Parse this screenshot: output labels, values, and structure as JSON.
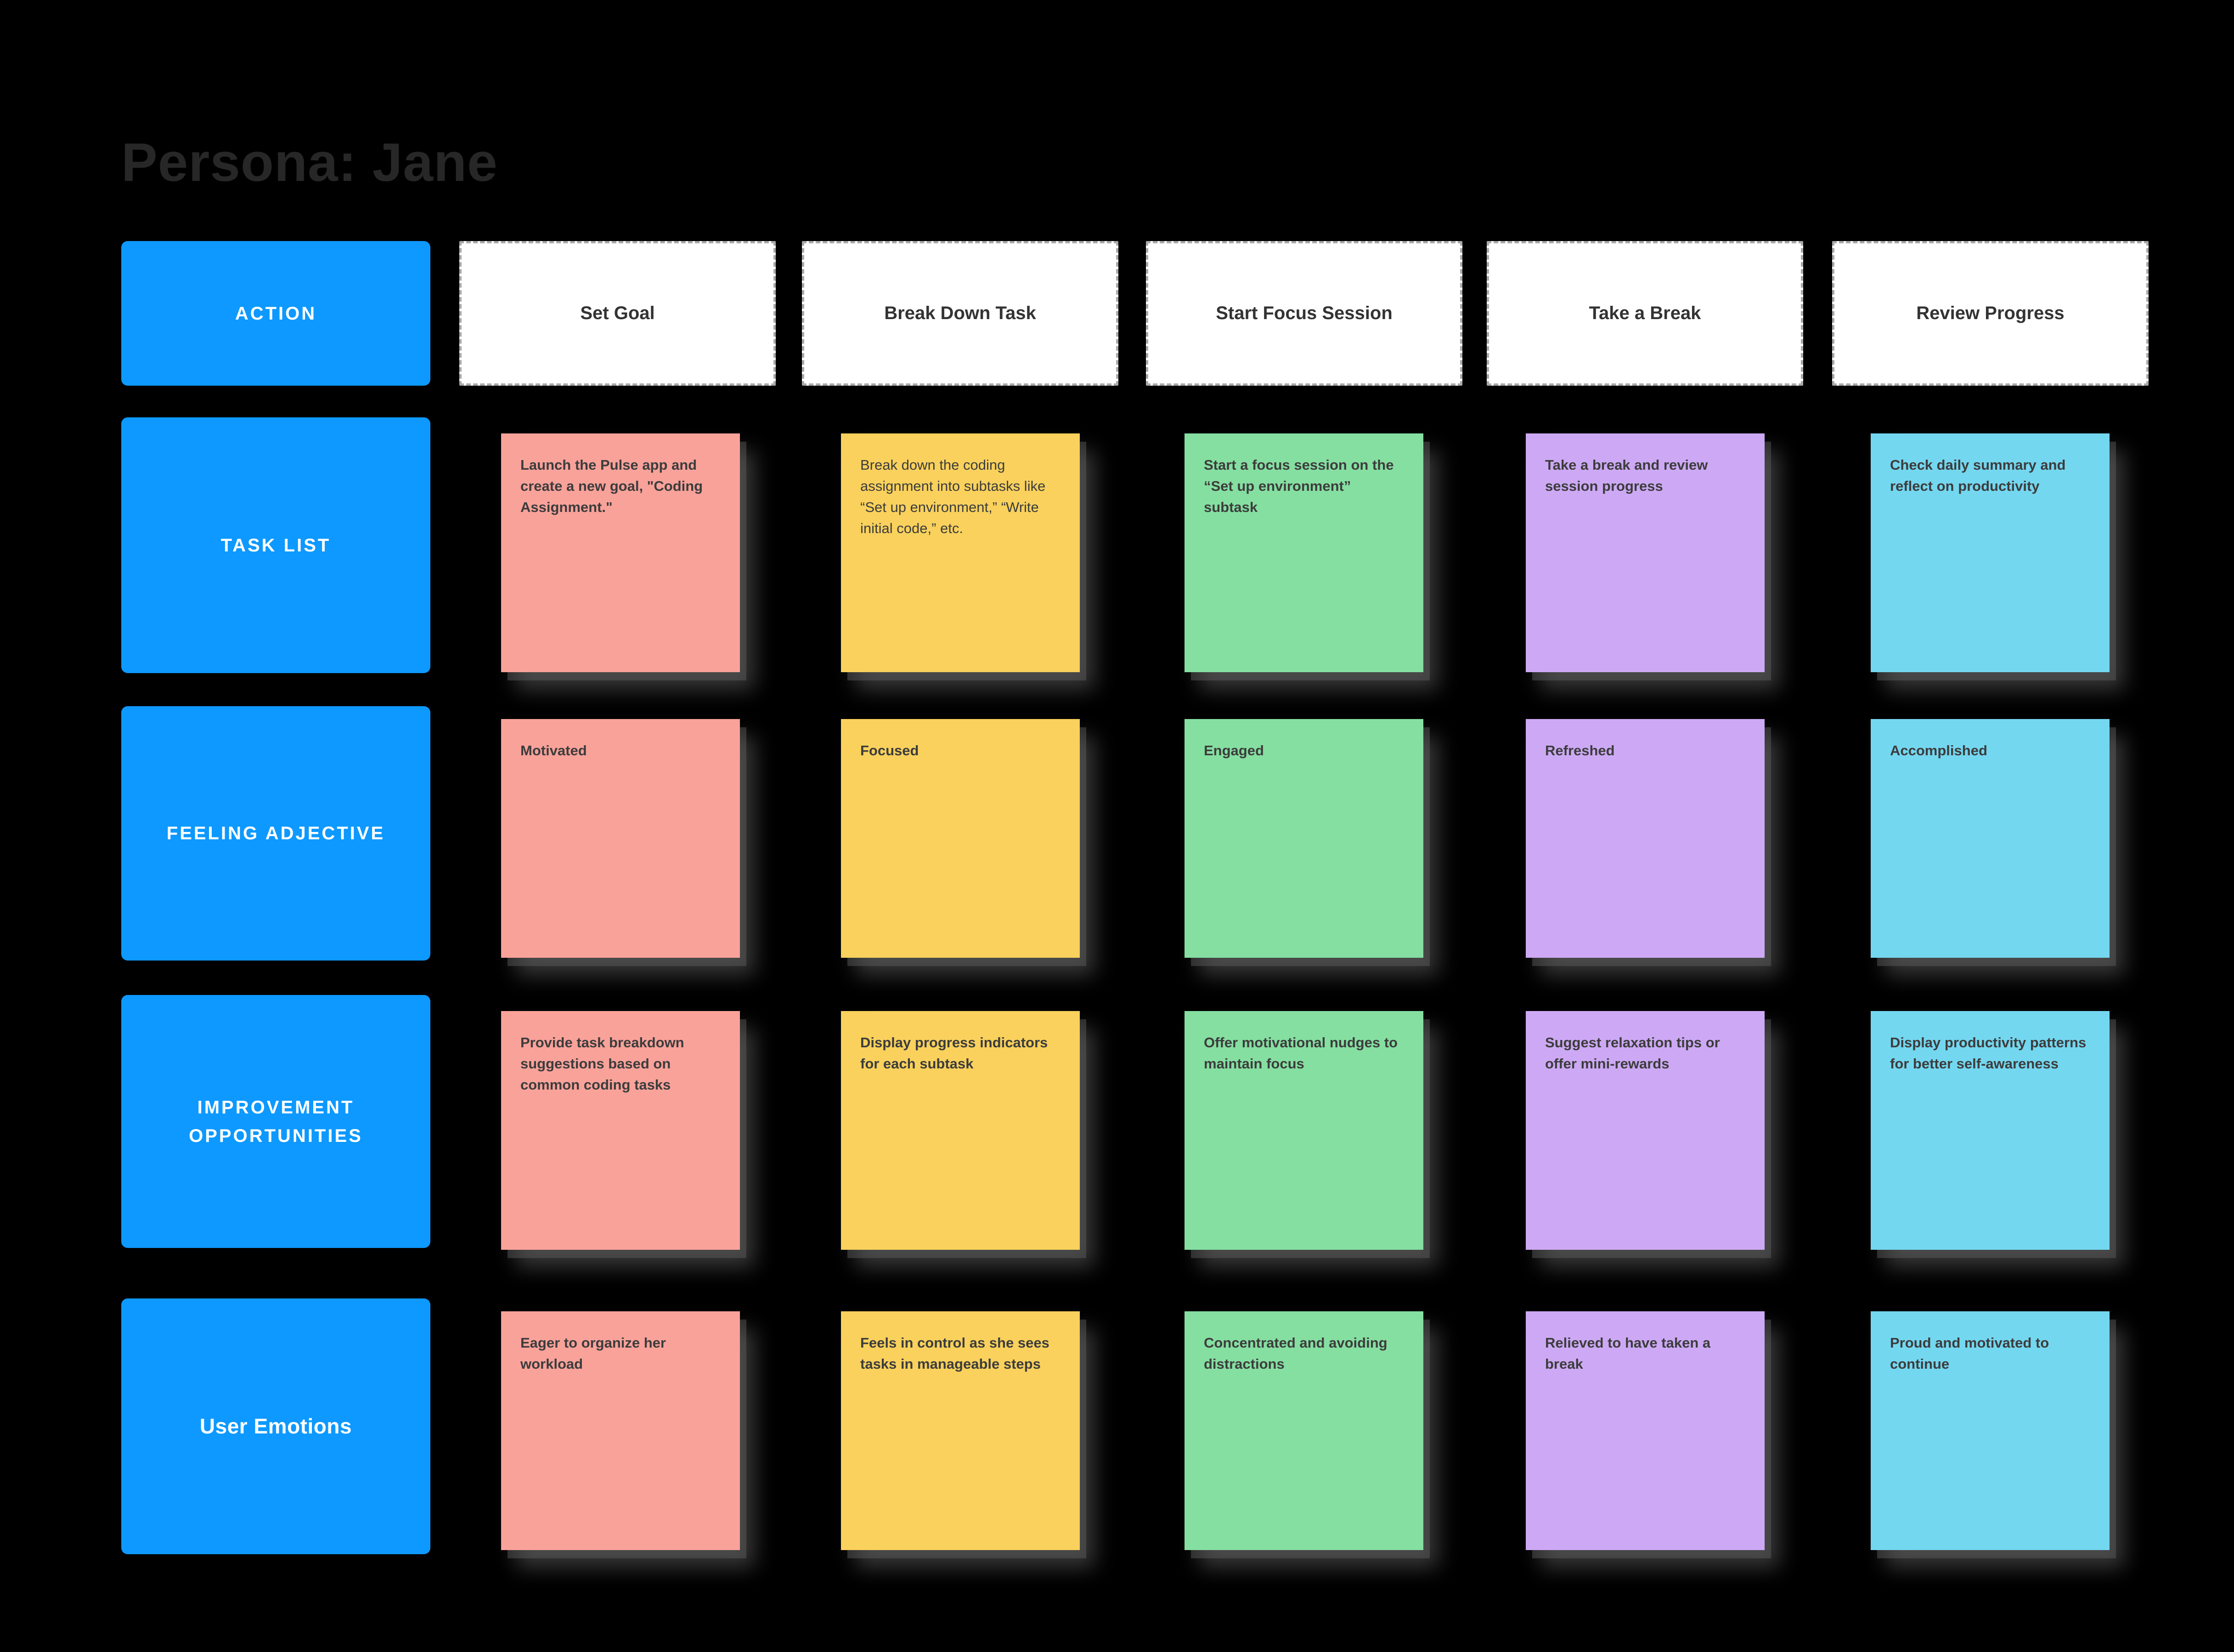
{
  "title": "Persona: Jane",
  "colors": {
    "background": "#000000",
    "title_text": "#272727",
    "header_blue": "#0D99FF",
    "note_colors": [
      "#F9A29A",
      "#F9D15C",
      "#85DFA1",
      "#CDA9F5",
      "#74D7F0"
    ],
    "sticky_text": "#3c3c3c"
  },
  "board": {
    "action_label": "ACTION",
    "columns": [
      "Set Goal",
      "Break Down Task",
      "Start Focus Session",
      "Take a Break",
      "Review Progress"
    ],
    "rows": [
      {
        "label": "TASK LIST",
        "notes": [
          "Launch the Pulse app and create a new goal, \"Coding Assignment.\"",
          "Break down the coding assignment into subtasks like “Set up environment,” “Write initial code,” etc.",
          "Start a focus session on the “Set up environment” subtask",
          "Take a break and review session progress",
          "Check daily summary and reflect on productivity"
        ]
      },
      {
        "label": "FEELING ADJECTIVE",
        "notes": [
          "Motivated",
          "Focused",
          "Engaged",
          "Refreshed",
          "Accomplished"
        ]
      },
      {
        "label": "IMPROVEMENT OPPORTUNITIES",
        "notes": [
          "Provide task breakdown suggestions based on common coding tasks",
          "Display progress indicators for each subtask",
          "Offer motivational nudges to maintain focus",
          "Suggest relaxation tips or offer mini-rewards",
          "Display productivity patterns for better self-awareness"
        ]
      },
      {
        "label": "User Emotions",
        "notes": [
          "Eager to organize her workload",
          "Feels in control as she sees tasks in manageable steps",
          "Concentrated and avoiding distractions",
          "Relieved to have taken a break",
          "Proud and motivated to continue"
        ]
      }
    ]
  }
}
